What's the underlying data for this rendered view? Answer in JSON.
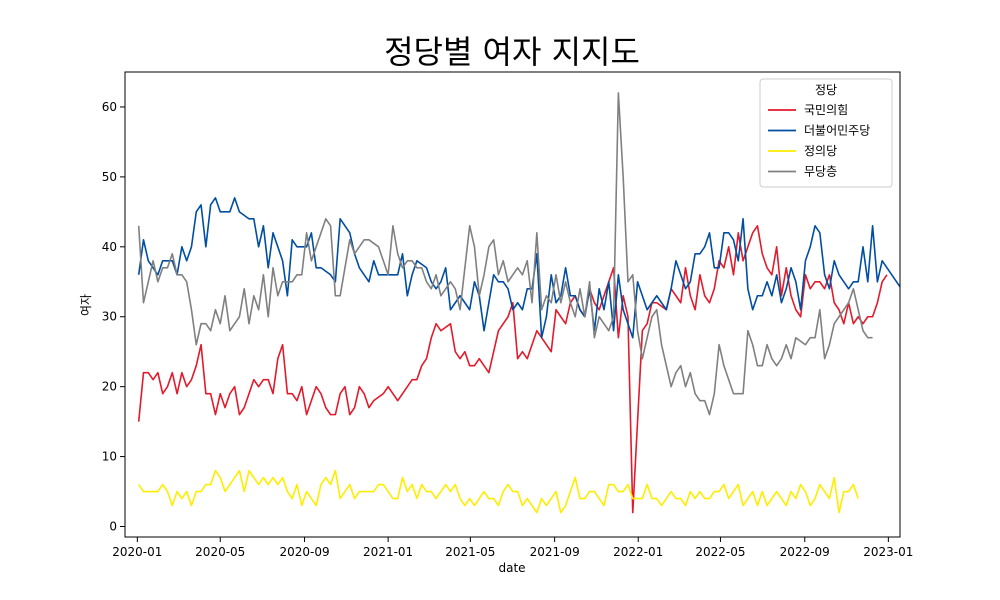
{
  "chart_data": {
    "type": "line",
    "title": "정당별 여자 지지도",
    "xlabel": "date",
    "ylabel": "여자",
    "xlim": [
      "2019-12-14",
      "2023-01-18"
    ],
    "ylim": [
      -1.5,
      65
    ],
    "x_ticks": [
      "2020-01",
      "2020-05",
      "2020-09",
      "2021-01",
      "2021-05",
      "2021-09",
      "2022-01",
      "2022-05",
      "2022-09",
      "2023-01"
    ],
    "y_ticks": [
      0,
      10,
      20,
      30,
      40,
      50,
      60
    ],
    "legend": {
      "title": "정당",
      "position": "top-right"
    },
    "grid": false,
    "x_start": "2020-01-03",
    "x_step_days": 7,
    "series": [
      {
        "name": "국민의힘",
        "color": "#e31a2b",
        "values": [
          15,
          22,
          22,
          21,
          22,
          19,
          20,
          22,
          19,
          22,
          20,
          21,
          23,
          26,
          19,
          19,
          16,
          19,
          17,
          19,
          20,
          16,
          17,
          19,
          21,
          20,
          21,
          21,
          19,
          24,
          26,
          19,
          19,
          18,
          20,
          16,
          18,
          20,
          19,
          17,
          16,
          16,
          19,
          20,
          16,
          17,
          20,
          19,
          17,
          18,
          18.5,
          19,
          20,
          19,
          18,
          19,
          20,
          21,
          21,
          23,
          24,
          27,
          29,
          28,
          28.5,
          29,
          25,
          24,
          25,
          23,
          23,
          24,
          23,
          22,
          25,
          28,
          29,
          30,
          32,
          24,
          25,
          24,
          26,
          28,
          27,
          26,
          25,
          31,
          30,
          29,
          32,
          33,
          31,
          30,
          34,
          32,
          31,
          33,
          35,
          37,
          27,
          33,
          30,
          2,
          15,
          28,
          29,
          32,
          32,
          31.5,
          31,
          34,
          33,
          32,
          37,
          33,
          31,
          36,
          33,
          32,
          34,
          38,
          37,
          40,
          36,
          42,
          38,
          40,
          42,
          43,
          39,
          37,
          36,
          40,
          33,
          37,
          33,
          31,
          30,
          36,
          34,
          35,
          35,
          34,
          36,
          32,
          31,
          29,
          32,
          29,
          30,
          29,
          30,
          30,
          32,
          35,
          36
        ]
      },
      {
        "name": "더불어민주당",
        "color": "#004ea2",
        "values": [
          36,
          41,
          38,
          37,
          36,
          38,
          38,
          38,
          36,
          40,
          38,
          40,
          45,
          46,
          40,
          46,
          47,
          45,
          45,
          45,
          47,
          45,
          44.5,
          44,
          44,
          40,
          43,
          37,
          42,
          40,
          38,
          33,
          41,
          40,
          40,
          40,
          42,
          37,
          37,
          36.5,
          36,
          35,
          44,
          43,
          42,
          39,
          37,
          36,
          35,
          38,
          36,
          36,
          36,
          36,
          36,
          39,
          33,
          36,
          38,
          37.5,
          37,
          35,
          34,
          35,
          37,
          31,
          32,
          33,
          32,
          31,
          35,
          33,
          28,
          32,
          36,
          35,
          35,
          34,
          31,
          32,
          31,
          34,
          34,
          39,
          27,
          30,
          36,
          32,
          33,
          37,
          33,
          33,
          31,
          30,
          34,
          28,
          34,
          31,
          35,
          28,
          36,
          31,
          29,
          27,
          35,
          33,
          31,
          32,
          33,
          32,
          31,
          34,
          38,
          36,
          34,
          35,
          39,
          39,
          40,
          42,
          37,
          37,
          42,
          42,
          41,
          38,
          44,
          34,
          31,
          33,
          33,
          35,
          33,
          36,
          32,
          34,
          37,
          35,
          31,
          38,
          40,
          43,
          42,
          36,
          34,
          38,
          36,
          35,
          34,
          35,
          35,
          40,
          35,
          43,
          35,
          38,
          37,
          36,
          35,
          34,
          34,
          35,
          32,
          33
        ]
      },
      {
        "name": "정의당",
        "color": "#ffed00",
        "values": [
          6,
          5,
          5,
          5,
          5,
          6,
          5,
          3,
          5,
          4,
          5,
          3,
          5,
          5,
          6,
          6,
          8,
          7,
          5,
          6,
          7,
          8,
          5,
          8,
          7,
          6,
          7,
          6,
          7,
          6,
          7,
          5,
          4,
          6,
          3,
          5,
          4,
          3,
          6,
          7,
          6,
          8,
          4,
          5,
          6,
          4,
          5,
          5,
          5,
          5,
          6,
          6,
          5,
          4,
          4,
          7,
          5,
          6,
          4,
          6,
          5,
          5,
          4,
          5,
          6,
          5,
          6,
          4,
          3,
          4,
          3,
          4,
          5,
          4,
          4,
          3,
          5,
          6,
          5,
          5,
          3,
          4,
          3,
          2,
          4,
          3,
          4,
          5,
          2,
          3,
          5,
          7,
          4,
          4,
          5,
          5,
          4,
          3,
          6,
          6,
          5,
          5,
          6,
          4,
          4,
          4,
          6,
          4,
          4,
          3,
          4,
          5,
          4,
          4,
          3,
          5,
          4,
          5,
          4,
          4,
          5,
          5,
          6,
          4,
          5,
          6,
          3,
          4,
          5,
          3,
          5,
          3,
          4,
          5,
          4,
          3,
          5,
          4,
          6,
          5,
          3,
          4,
          6,
          5,
          4,
          7,
          2,
          5,
          5,
          6,
          4
        ]
      },
      {
        "name": "무당층",
        "color": "#808080",
        "values": [
          43,
          32,
          35,
          38,
          35,
          37,
          37,
          39,
          36,
          36,
          35,
          31,
          26,
          29,
          29,
          28,
          31,
          29,
          33,
          28,
          29,
          30,
          34,
          29,
          33,
          31,
          36,
          30,
          37,
          33,
          35,
          35,
          35,
          36,
          36,
          42,
          38,
          40,
          42,
          44,
          43,
          33,
          33,
          37,
          41,
          39,
          40,
          41,
          41,
          40.5,
          40,
          38,
          36,
          43,
          39,
          37,
          38,
          38,
          37,
          37,
          35,
          34,
          36,
          33,
          34,
          35,
          34,
          31,
          37,
          43,
          40,
          33,
          36,
          40,
          41,
          36,
          38,
          35,
          36,
          37,
          36,
          38,
          32,
          42,
          31,
          33,
          32,
          36,
          32,
          35,
          32,
          30,
          34,
          30,
          35,
          27,
          30,
          29,
          28,
          30,
          62,
          50,
          35,
          36,
          28,
          24,
          27,
          30,
          31,
          26,
          23,
          20,
          22,
          23,
          20,
          22,
          19,
          18,
          18,
          16,
          19,
          26,
          23,
          21,
          19,
          19,
          19,
          28,
          26,
          23,
          23,
          26,
          24,
          23,
          24,
          26,
          24,
          27,
          26.5,
          26,
          27,
          27,
          31,
          24,
          26,
          29,
          30,
          31,
          32,
          34,
          31,
          28,
          27,
          27
        ]
      }
    ]
  }
}
